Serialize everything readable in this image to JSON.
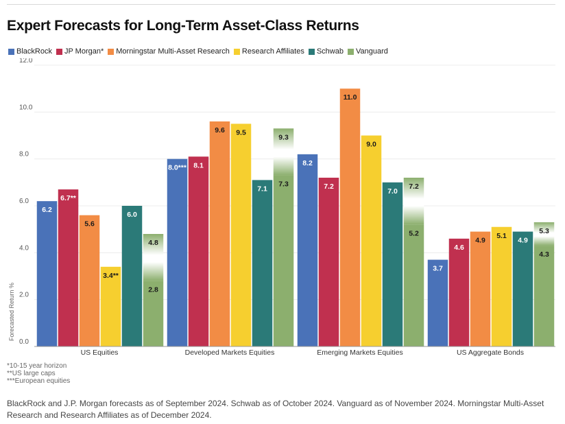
{
  "title": "Expert Forecasts for Long-Term Asset-Class Returns",
  "chart_data": {
    "type": "bar",
    "title": "Expert Forecasts for Long-Term Asset-Class Returns",
    "xlabel": "",
    "ylabel": "Forecasted Return %",
    "ylim": [
      0,
      12
    ],
    "yticks": [
      "0.0",
      "2.0",
      "4.0",
      "6.0",
      "8.0",
      "10.0",
      "12.0"
    ],
    "categories": [
      "US Equities",
      "Developed Markets Equities",
      "Emerging Markets Equities",
      "US Aggregate Bonds"
    ],
    "legend_position": "top-left",
    "series": [
      {
        "name": "BlackRock",
        "color": "#4a72b8",
        "values": [
          6.2,
          8.0,
          8.2,
          3.7
        ],
        "labels": [
          "6.2",
          "8.0***",
          "8.2",
          "3.7"
        ]
      },
      {
        "name": "JP Morgan*",
        "color": "#c0304f",
        "values": [
          6.7,
          8.1,
          7.2,
          4.6
        ],
        "labels": [
          "6.7**",
          "8.1",
          "7.2",
          "4.6"
        ]
      },
      {
        "name": "Morningstar Multi-Asset Research",
        "color": "#f28c45",
        "values": [
          5.6,
          9.6,
          11.0,
          4.9
        ],
        "labels": [
          "5.6",
          "9.6",
          "11.0",
          "4.9"
        ]
      },
      {
        "name": "Research Affiliates",
        "color": "#f6cf2f",
        "values": [
          3.4,
          9.5,
          9.0,
          5.1
        ],
        "labels": [
          "3.4**",
          "9.5",
          "9.0",
          "5.1"
        ]
      },
      {
        "name": "Schwab",
        "color": "#2b7a78",
        "values": [
          6.0,
          7.1,
          7.0,
          4.9
        ],
        "labels": [
          "6.0",
          "7.1",
          "7.0",
          "4.9"
        ]
      },
      {
        "name": "Vanguard",
        "color": "#8caf6e",
        "values": [
          2.8,
          7.3,
          5.2,
          4.3
        ],
        "labels": [
          "2.8",
          "7.3",
          "5.2",
          "4.3"
        ],
        "range_high": [
          4.8,
          9.3,
          7.2,
          5.3
        ],
        "range_high_labels": [
          "4.8",
          "9.3",
          "7.2",
          "5.3"
        ]
      }
    ]
  },
  "footnotes": [
    "*10-15 year horizon",
    "**US large caps",
    "***European equities"
  ],
  "source_note": "BlackRock and J.P. Morgan forecasts as of September 2024. Schwab as of October 2024. Vanguard as of November 2024. Morningstar Multi-Asset Research and Research Affiliates as of December 2024."
}
